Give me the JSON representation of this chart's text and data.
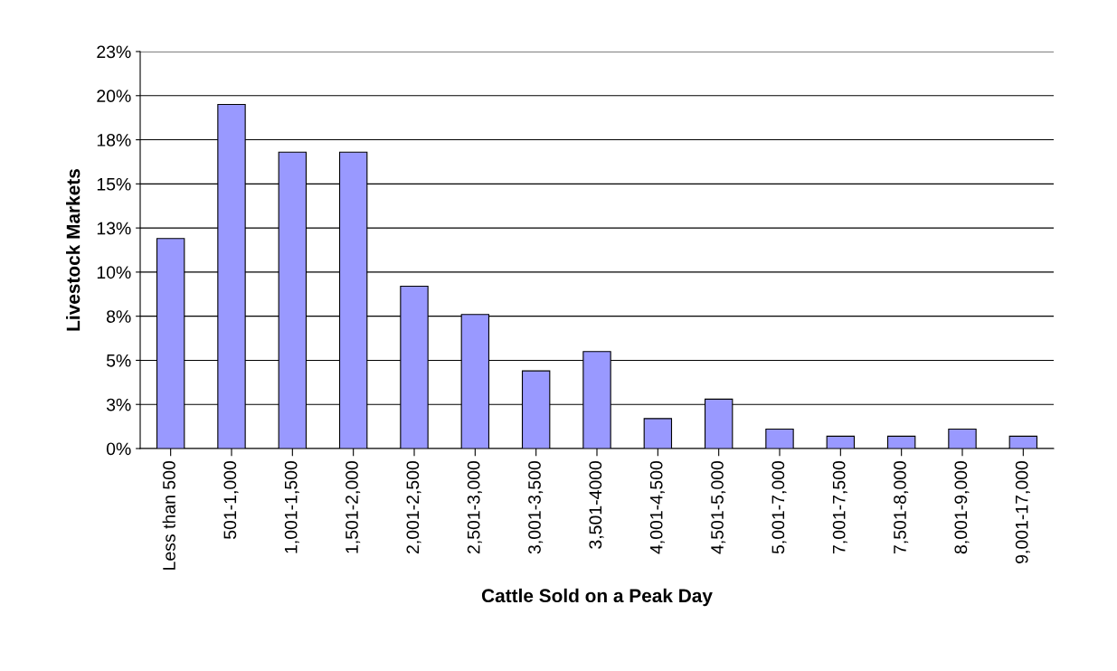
{
  "chart_data": {
    "type": "bar",
    "xlabel": "Cattle Sold on a Peak Day",
    "ylabel": "Livestock Markets",
    "categories": [
      "Less than 500",
      "501-1,000",
      "1,001-1,500",
      "1,501-2,000",
      "2,001-2,500",
      "2,501-3,000",
      "3,001-3,500",
      "3,501-4000",
      "4,001-4,500",
      "4,501-5,000",
      "5,001-7,000",
      "7,001-7,500",
      "7,501-8,000",
      "8,001-9,000",
      "9,001-17,000"
    ],
    "values": [
      11.9,
      19.5,
      16.8,
      16.8,
      9.2,
      7.6,
      4.4,
      5.5,
      1.7,
      2.8,
      1.1,
      0.7,
      0.7,
      1.1,
      0.7
    ],
    "color": "#9999ff",
    "ylim": [
      0,
      22.5
    ],
    "yticks": [
      {
        "value": 0,
        "label": "0%"
      },
      {
        "value": 2.5,
        "label": "3%"
      },
      {
        "value": 5,
        "label": "5%"
      },
      {
        "value": 7.5,
        "label": "8%"
      },
      {
        "value": 10,
        "label": "10%"
      },
      {
        "value": 12.5,
        "label": "13%"
      },
      {
        "value": 15,
        "label": "15%"
      },
      {
        "value": 17.5,
        "label": "18%"
      },
      {
        "value": 20,
        "label": "20%"
      },
      {
        "value": 22.5,
        "label": "23%"
      }
    ],
    "grid": "y"
  }
}
